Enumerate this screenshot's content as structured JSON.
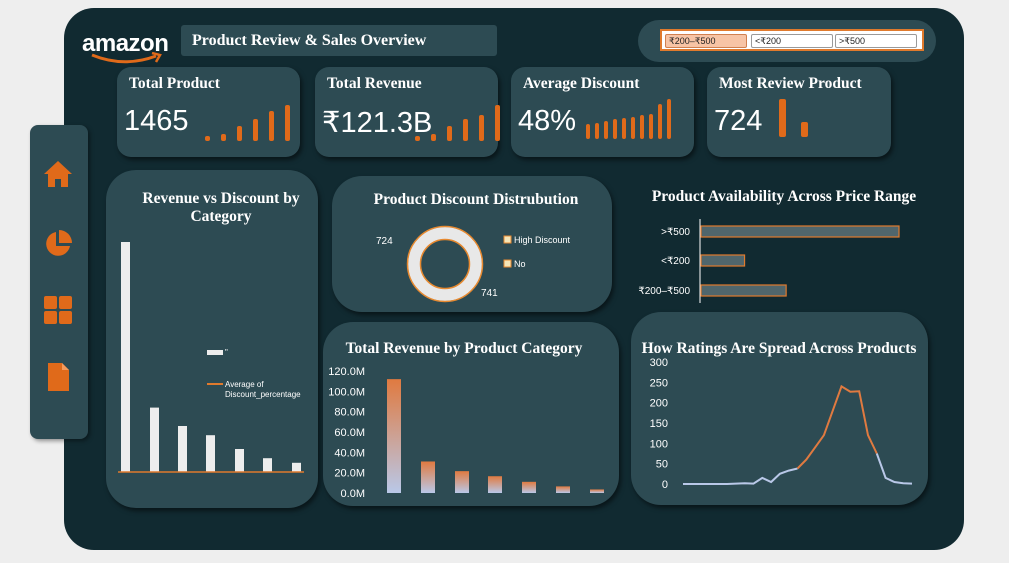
{
  "header": {
    "logo": "amazon",
    "title": "Product Review & Sales Overview"
  },
  "filters": [
    {
      "label": "₹200–₹500",
      "selected": true
    },
    {
      "label": "<₹200",
      "selected": false
    },
    {
      "label": ">₹500",
      "selected": false
    }
  ],
  "sidebar": {
    "items": [
      {
        "icon": "home-icon"
      },
      {
        "icon": "pie-chart-icon"
      },
      {
        "icon": "grid-icon"
      },
      {
        "icon": "document-icon"
      }
    ]
  },
  "kpis": [
    {
      "label": "Total Product",
      "value": "1465",
      "spark": [
        0.13,
        0.2,
        0.43,
        0.6,
        0.83,
        1.0
      ]
    },
    {
      "label": "Total Revenue",
      "value": "₹121.3B",
      "spark": [
        0.14,
        0.2,
        0.43,
        0.6,
        0.71,
        1.0
      ]
    },
    {
      "label": "Average Discount",
      "value": "48%",
      "spark": [
        0.38,
        0.4,
        0.45,
        0.5,
        0.52,
        0.55,
        0.6,
        0.63,
        0.88,
        1.0
      ]
    },
    {
      "label": "Most Review Product",
      "value": "724",
      "spark": [
        1.0,
        0.4
      ]
    }
  ],
  "colors": {
    "background": "#112a31",
    "card": "#2d4b53",
    "accent": "#e06a1a",
    "bar_light": "#ededed",
    "gridline_light": "#7c8ea8"
  },
  "chart_data": [
    {
      "type": "bar",
      "title": "Revenue vs Discount by Category",
      "values": [
        100,
        28,
        20,
        16,
        10,
        6,
        4
      ],
      "legend": [
        {
          "name": "\"",
          "kind": "bar"
        },
        {
          "name": "Average of Discount_percentage",
          "kind": "line"
        }
      ],
      "ylim": [
        0,
        100
      ]
    },
    {
      "type": "pie",
      "title": "Product Discount Distrubution",
      "slices": [
        {
          "name": "High Discount",
          "value": 724,
          "label": "724"
        },
        {
          "name": "No",
          "value": 741,
          "label": "741"
        }
      ]
    },
    {
      "type": "bar",
      "orientation": "horizontal",
      "title": "Product Availability Across Price Range",
      "categories": [
        ">₹500",
        "<₹200",
        "₹200–₹500"
      ],
      "values": [
        1.0,
        0.22,
        0.43
      ],
      "xlim": [
        0,
        1
      ]
    },
    {
      "type": "bar",
      "title": "Total Revenue by Product Category",
      "yticks": [
        "120.0M",
        "100.0M",
        "80.0M",
        "60.0M",
        "40.0M",
        "20.0M",
        "0.0M"
      ],
      "values": [
        112,
        31,
        21.5,
        16.5,
        11,
        6.5,
        3.5
      ],
      "ylim": [
        0,
        120
      ]
    },
    {
      "type": "line",
      "title": "How Ratings Are Spread Across Products",
      "yticks": [
        "300",
        "250",
        "200",
        "150",
        "100",
        "50",
        "0"
      ],
      "values": [
        0,
        0,
        0,
        0,
        0,
        0,
        1,
        2,
        1,
        15,
        5,
        25,
        33,
        38,
        60,
        90,
        120,
        180,
        240,
        227,
        228,
        120,
        75,
        15,
        5,
        2,
        1
      ],
      "peak_index_orange": [
        13,
        22
      ],
      "ylim": [
        0,
        300
      ]
    }
  ]
}
